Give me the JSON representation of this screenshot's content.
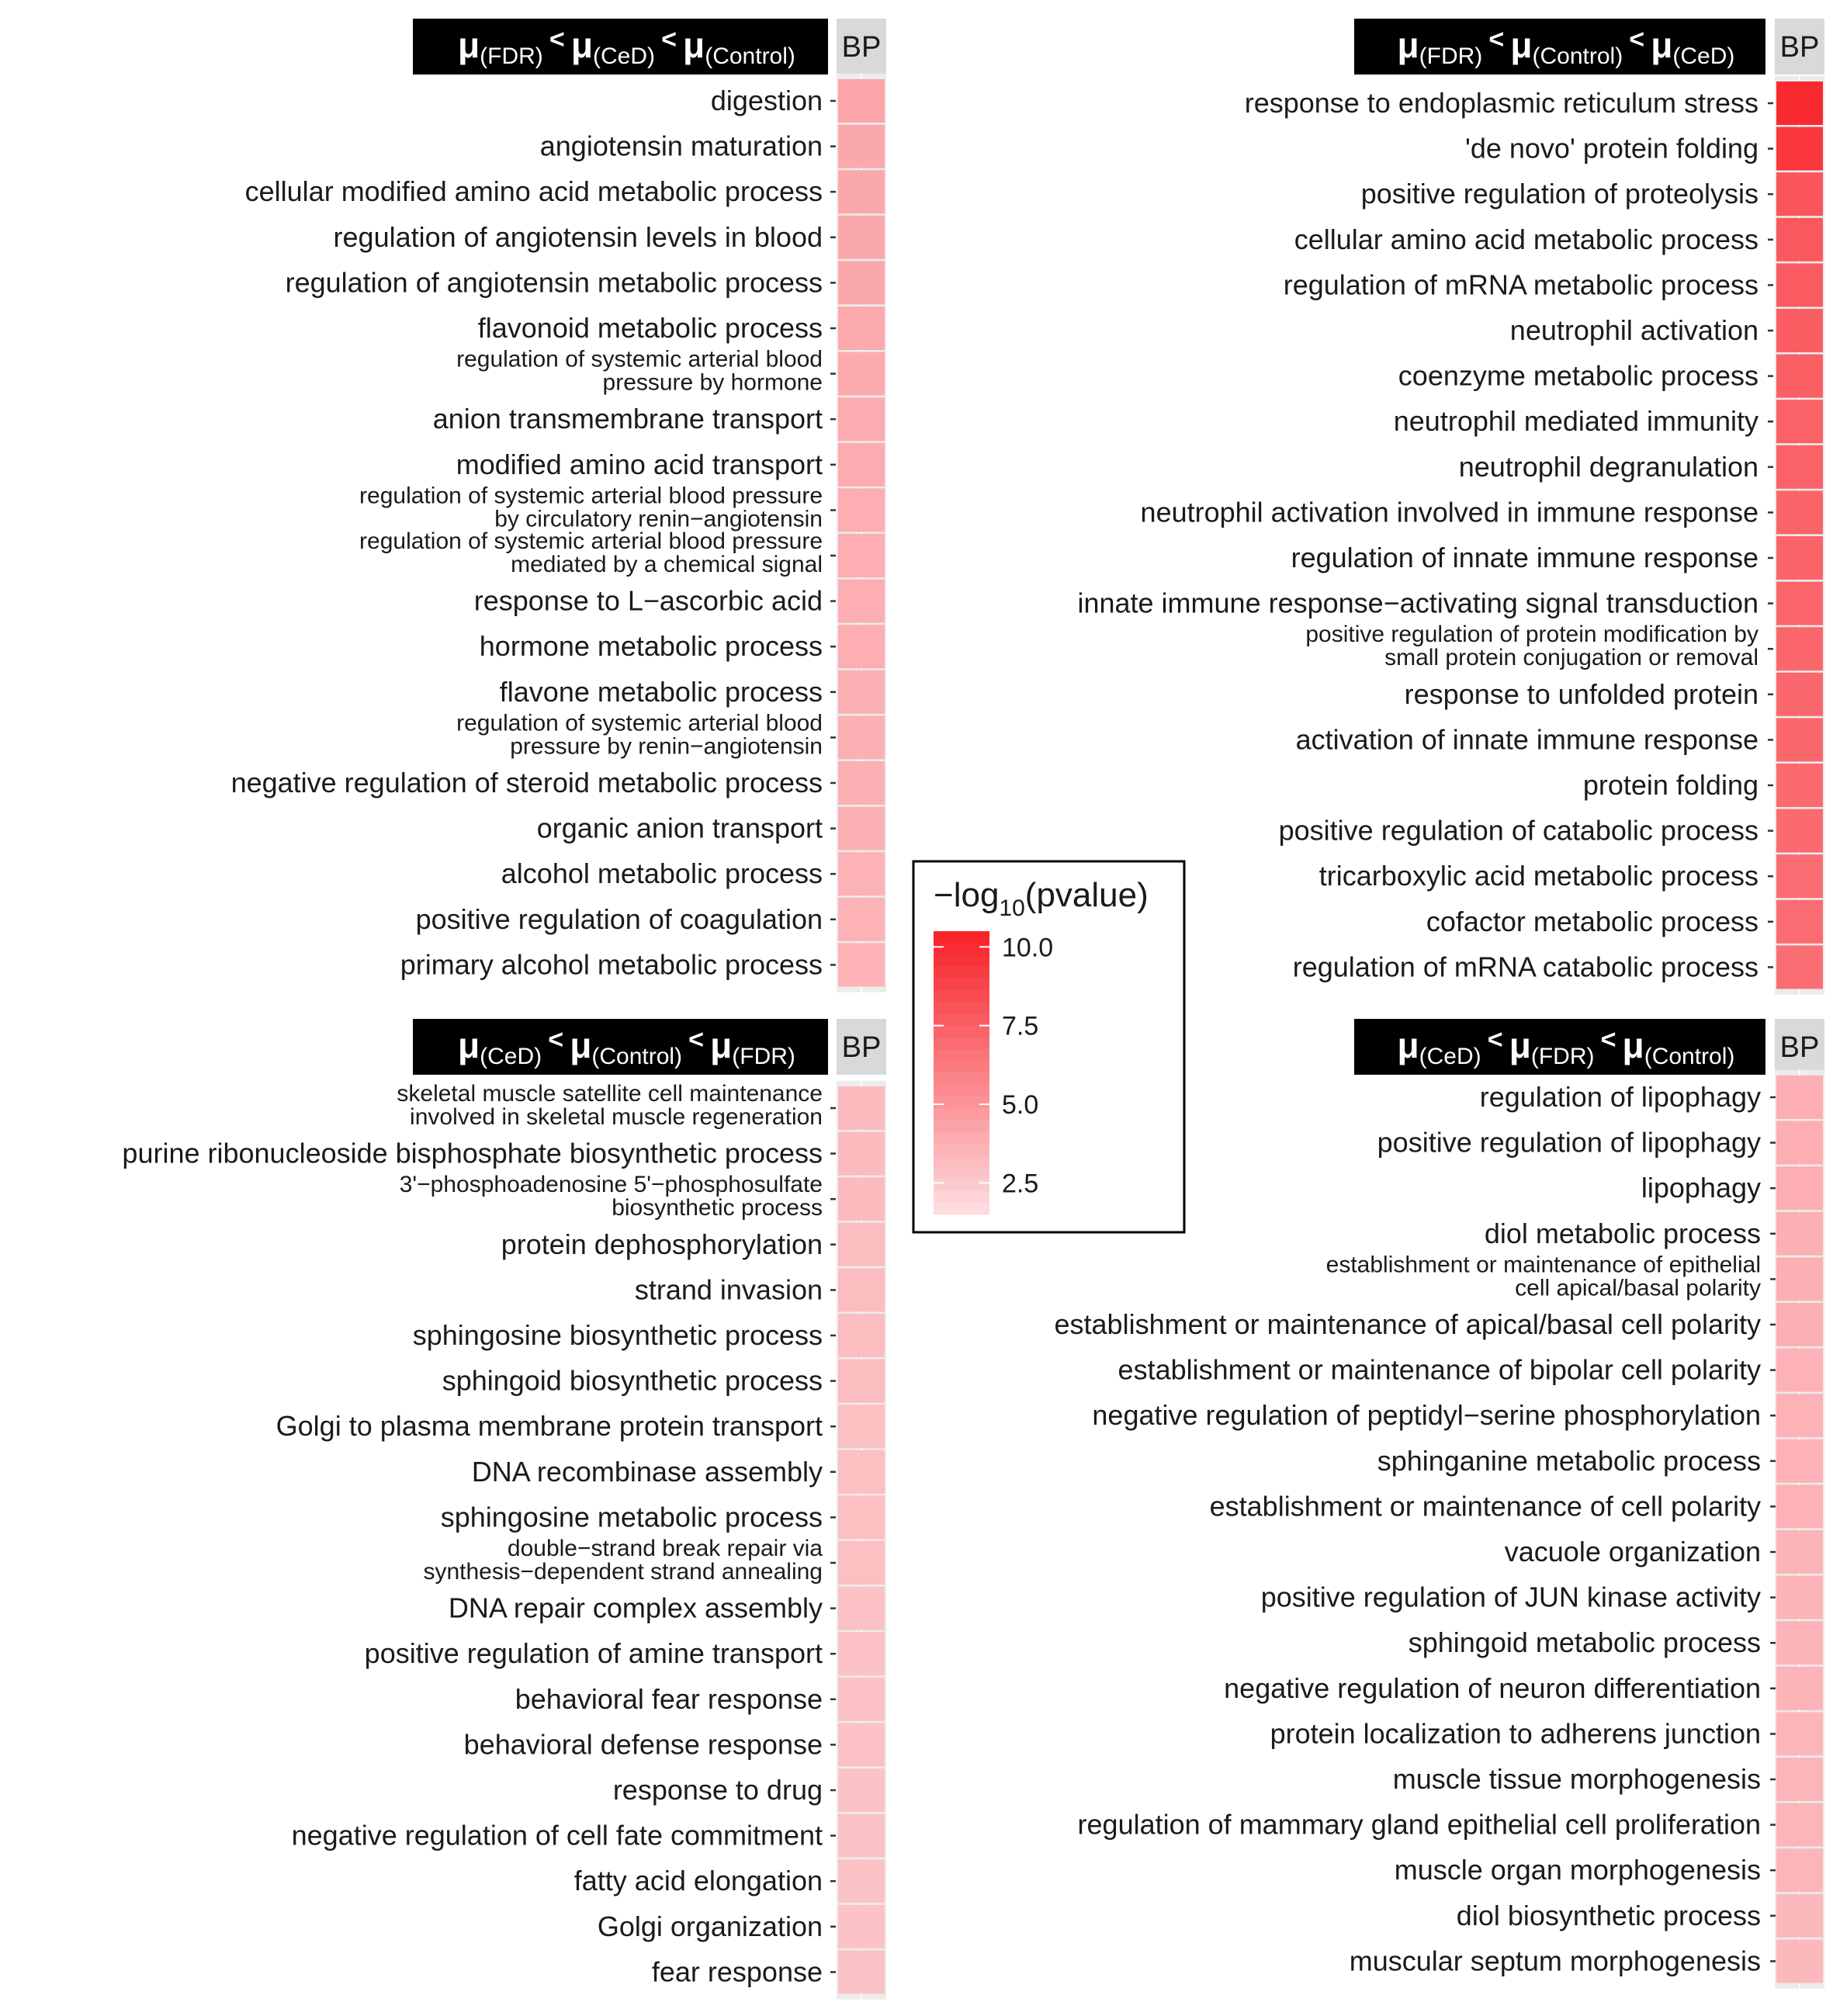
{
  "chart_data": {
    "type": "heatmap",
    "legend": {
      "title_prefix": "−log",
      "title_sub": "10",
      "title_suffix": "(pvalue)",
      "ticks": [
        "10.0",
        "7.5",
        "5.0",
        "2.5"
      ],
      "tick_values": [
        10.0,
        7.5,
        5.0,
        2.5
      ],
      "range": [
        1.5,
        10.5
      ],
      "low_color": "#fde3e6",
      "high_color": "#f8242a",
      "placement": "center"
    },
    "panels": [
      {
        "id": "fdr-ced-control",
        "title": [
          {
            "mu": "μ",
            "group": "(FDR)"
          },
          {
            "op": "<"
          },
          {
            "mu": "μ",
            "group": "(CeD)"
          },
          {
            "op": "<"
          },
          {
            "mu": "μ",
            "group": "(Control)"
          }
        ],
        "strip": "BP",
        "terms": [
          {
            "label": [
              "digestion"
            ],
            "value": 4.4
          },
          {
            "label": [
              "angiotensin maturation"
            ],
            "value": 4.3
          },
          {
            "label": [
              "cellular modified amino acid metabolic process"
            ],
            "value": 4.3
          },
          {
            "label": [
              "regulation of angiotensin levels in blood"
            ],
            "value": 4.3
          },
          {
            "label": [
              "regulation of angiotensin metabolic process"
            ],
            "value": 4.3
          },
          {
            "label": [
              "flavonoid metabolic process"
            ],
            "value": 4.2
          },
          {
            "label": [
              "regulation of systemic arterial blood",
              "pressure by hormone"
            ],
            "value": 4.2
          },
          {
            "label": [
              "anion transmembrane transport"
            ],
            "value": 4.1
          },
          {
            "label": [
              "modified amino acid transport"
            ],
            "value": 4.1
          },
          {
            "label": [
              "regulation of systemic arterial blood pressure",
              "by circulatory renin−angiotensin"
            ],
            "value": 4.0
          },
          {
            "label": [
              "regulation of systemic arterial blood pressure",
              "mediated by a chemical signal"
            ],
            "value": 4.0
          },
          {
            "label": [
              "response to L−ascorbic acid"
            ],
            "value": 4.0
          },
          {
            "label": [
              "hormone metabolic process"
            ],
            "value": 4.0
          },
          {
            "label": [
              "flavone metabolic process"
            ],
            "value": 3.9
          },
          {
            "label": [
              "regulation of systemic arterial blood",
              "pressure by renin−angiotensin"
            ],
            "value": 3.9
          },
          {
            "label": [
              "negative regulation of steroid metabolic process"
            ],
            "value": 3.9
          },
          {
            "label": [
              "organic anion transport"
            ],
            "value": 3.9
          },
          {
            "label": [
              "alcohol metabolic process"
            ],
            "value": 3.8
          },
          {
            "label": [
              "positive regulation of coagulation"
            ],
            "value": 3.8
          },
          {
            "label": [
              "primary alcohol metabolic process"
            ],
            "value": 3.8
          }
        ]
      },
      {
        "id": "fdr-control-ced",
        "title": [
          {
            "mu": "μ",
            "group": "(FDR)"
          },
          {
            "op": "<"
          },
          {
            "mu": "μ",
            "group": "(Control)"
          },
          {
            "op": "<"
          },
          {
            "mu": "μ",
            "group": "(CeD)"
          }
        ],
        "strip": "BP",
        "terms": [
          {
            "label": [
              "response to endoplasmic reticulum stress"
            ],
            "value": 10.2
          },
          {
            "label": [
              "'de novo' protein folding"
            ],
            "value": 9.6
          },
          {
            "label": [
              "positive regulation of proteolysis"
            ],
            "value": 8.2
          },
          {
            "label": [
              "cellular amino acid metabolic process"
            ],
            "value": 8.0
          },
          {
            "label": [
              "regulation of mRNA metabolic process"
            ],
            "value": 7.9
          },
          {
            "label": [
              "neutrophil activation"
            ],
            "value": 7.8
          },
          {
            "label": [
              "coenzyme metabolic process"
            ],
            "value": 7.7
          },
          {
            "label": [
              "neutrophil mediated immunity"
            ],
            "value": 7.6
          },
          {
            "label": [
              "neutrophil degranulation"
            ],
            "value": 7.6
          },
          {
            "label": [
              "neutrophil activation involved in immune response"
            ],
            "value": 7.5
          },
          {
            "label": [
              "regulation of innate immune response"
            ],
            "value": 7.5
          },
          {
            "label": [
              "innate immune response−activating signal transduction"
            ],
            "value": 7.4
          },
          {
            "label": [
              "positive regulation of protein modification by",
              "small protein conjugation or removal"
            ],
            "value": 7.4
          },
          {
            "label": [
              "response to unfolded protein"
            ],
            "value": 7.3
          },
          {
            "label": [
              "activation of innate immune response"
            ],
            "value": 7.3
          },
          {
            "label": [
              "protein folding"
            ],
            "value": 7.2
          },
          {
            "label": [
              "positive regulation of catabolic process"
            ],
            "value": 7.2
          },
          {
            "label": [
              "tricarboxylic acid metabolic process"
            ],
            "value": 7.1
          },
          {
            "label": [
              "cofactor metabolic process"
            ],
            "value": 7.1
          },
          {
            "label": [
              "regulation of mRNA catabolic process"
            ],
            "value": 7.0
          }
        ]
      },
      {
        "id": "ced-control-fdr",
        "title": [
          {
            "mu": "μ",
            "group": "(CeD)"
          },
          {
            "op": "<"
          },
          {
            "mu": "μ",
            "group": "(Control)"
          },
          {
            "op": "<"
          },
          {
            "mu": "μ",
            "group": "(FDR)"
          }
        ],
        "strip": "BP",
        "terms": [
          {
            "label": [
              "skeletal muscle satellite cell maintenance",
              "involved in skeletal muscle regeneration"
            ],
            "value": 3.4
          },
          {
            "label": [
              "purine ribonucleoside bisphosphate biosynthetic process"
            ],
            "value": 3.4
          },
          {
            "label": [
              "3'−phosphoadenosine 5'−phosphosulfate",
              "biosynthetic process"
            ],
            "value": 3.4
          },
          {
            "label": [
              "protein dephosphorylation"
            ],
            "value": 3.3
          },
          {
            "label": [
              "strand invasion"
            ],
            "value": 3.3
          },
          {
            "label": [
              "sphingosine biosynthetic process"
            ],
            "value": 3.3
          },
          {
            "label": [
              "sphingoid biosynthetic process"
            ],
            "value": 3.3
          },
          {
            "label": [
              "Golgi to plasma membrane protein transport"
            ],
            "value": 3.2
          },
          {
            "label": [
              "DNA recombinase assembly"
            ],
            "value": 3.2
          },
          {
            "label": [
              "sphingosine metabolic process"
            ],
            "value": 3.2
          },
          {
            "label": [
              "double−strand break repair via",
              "synthesis−dependent strand annealing"
            ],
            "value": 3.2
          },
          {
            "label": [
              "DNA repair complex assembly"
            ],
            "value": 3.1
          },
          {
            "label": [
              "positive regulation of amine transport"
            ],
            "value": 3.1
          },
          {
            "label": [
              "behavioral fear response"
            ],
            "value": 3.1
          },
          {
            "label": [
              "behavioral defense response"
            ],
            "value": 3.1
          },
          {
            "label": [
              "response to drug"
            ],
            "value": 3.0
          },
          {
            "label": [
              "negative regulation of cell fate commitment"
            ],
            "value": 3.0
          },
          {
            "label": [
              "fatty acid elongation"
            ],
            "value": 3.0
          },
          {
            "label": [
              "Golgi organization"
            ],
            "value": 3.0
          },
          {
            "label": [
              "fear response"
            ],
            "value": 3.0
          }
        ]
      },
      {
        "id": "ced-fdr-control",
        "title": [
          {
            "mu": "μ",
            "group": "(CeD)"
          },
          {
            "op": "<"
          },
          {
            "mu": "μ",
            "group": "(FDR)"
          },
          {
            "op": "<"
          },
          {
            "mu": "μ",
            "group": "(Control)"
          }
        ],
        "strip": "BP",
        "terms": [
          {
            "label": [
              "regulation of lipophagy"
            ],
            "value": 4.0
          },
          {
            "label": [
              "positive regulation of lipophagy"
            ],
            "value": 4.0
          },
          {
            "label": [
              "lipophagy"
            ],
            "value": 4.0
          },
          {
            "label": [
              "diol metabolic process"
            ],
            "value": 3.9
          },
          {
            "label": [
              "establishment or maintenance of epithelial",
              "cell apical/basal polarity"
            ],
            "value": 3.9
          },
          {
            "label": [
              "establishment or maintenance of apical/basal cell polarity"
            ],
            "value": 3.9
          },
          {
            "label": [
              "establishment or maintenance of bipolar cell polarity"
            ],
            "value": 3.8
          },
          {
            "label": [
              "negative regulation of peptidyl−serine phosphorylation"
            ],
            "value": 3.8
          },
          {
            "label": [
              "sphinganine metabolic process"
            ],
            "value": 3.8
          },
          {
            "label": [
              "establishment or maintenance of cell polarity"
            ],
            "value": 3.8
          },
          {
            "label": [
              "vacuole organization"
            ],
            "value": 3.7
          },
          {
            "label": [
              "positive regulation of JUN kinase activity"
            ],
            "value": 3.7
          },
          {
            "label": [
              "sphingoid metabolic process"
            ],
            "value": 3.7
          },
          {
            "label": [
              "negative regulation of neuron differentiation"
            ],
            "value": 3.7
          },
          {
            "label": [
              "protein localization to adherens junction"
            ],
            "value": 3.6
          },
          {
            "label": [
              "muscle tissue morphogenesis"
            ],
            "value": 3.6
          },
          {
            "label": [
              "regulation of mammary gland epithelial cell proliferation"
            ],
            "value": 3.6
          },
          {
            "label": [
              "muscle organ morphogenesis"
            ],
            "value": 3.6
          },
          {
            "label": [
              "diol biosynthetic process"
            ],
            "value": 3.5
          },
          {
            "label": [
              "muscular septum morphogenesis"
            ],
            "value": 3.5
          }
        ]
      }
    ]
  }
}
